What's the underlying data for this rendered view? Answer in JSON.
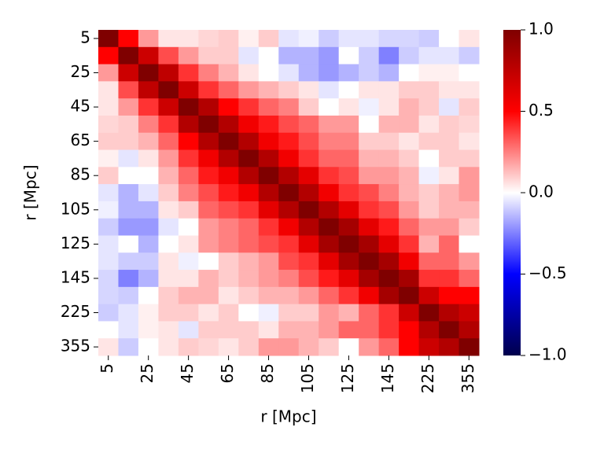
{
  "chart_data": {
    "type": "heatmap",
    "x_label": "r [Mpc]",
    "y_label": "r [Mpc]",
    "categories": [
      "5",
      null,
      "25",
      null,
      "45",
      null,
      "65",
      null,
      "85",
      null,
      "105",
      null,
      "125",
      null,
      "145",
      null,
      "225",
      null,
      "355"
    ],
    "colormap": [
      "#00004c",
      "#0000ff",
      "#ffffff",
      "#ff0000",
      "#7f0000"
    ],
    "clim": [
      -1,
      1
    ],
    "cticks": [
      {
        "value": -1,
        "label": "−1.0"
      },
      {
        "value": -0.5,
        "label": "−0.5"
      },
      {
        "value": 0,
        "label": "0.0"
      },
      {
        "value": 0.5,
        "label": "0.5"
      },
      {
        "value": 1,
        "label": "1.0"
      }
    ],
    "values": [
      [
        1,
        0.5,
        0.2,
        0.05,
        0.05,
        0.08,
        0.1,
        0.03,
        0.1,
        -0.05,
        -0.03,
        -0.1,
        -0.05,
        -0.05,
        -0.08,
        -0.08,
        -0.1,
        0.0,
        0.05
      ],
      [
        0.5,
        1,
        0.7,
        0.35,
        0.2,
        0.1,
        0.1,
        -0.05,
        0.0,
        -0.15,
        -0.15,
        -0.2,
        0.0,
        -0.1,
        -0.25,
        -0.1,
        -0.05,
        -0.05,
        -0.1
      ],
      [
        0.2,
        0.7,
        1,
        0.75,
        0.4,
        0.25,
        0.15,
        0.05,
        0.0,
        -0.05,
        -0.15,
        -0.2,
        -0.15,
        -0.1,
        -0.15,
        0.0,
        0.03,
        0.03,
        0.0
      ],
      [
        0.05,
        0.35,
        0.75,
        1,
        0.7,
        0.4,
        0.3,
        0.2,
        0.15,
        0.1,
        0.05,
        -0.05,
        0.0,
        0.05,
        0.05,
        0.1,
        0.1,
        0.05,
        0.05
      ],
      [
        0.05,
        0.2,
        0.4,
        0.7,
        1,
        0.8,
        0.5,
        0.4,
        0.3,
        0.25,
        0.1,
        0.0,
        0.05,
        -0.03,
        0.05,
        0.15,
        0.1,
        -0.05,
        0.1
      ],
      [
        0.08,
        0.1,
        0.25,
        0.4,
        0.8,
        1,
        0.8,
        0.55,
        0.45,
        0.35,
        0.3,
        0.2,
        0.2,
        0.0,
        0.15,
        0.15,
        0.05,
        0.1,
        0.08
      ],
      [
        0.1,
        0.1,
        0.15,
        0.3,
        0.5,
        0.8,
        1,
        0.8,
        0.55,
        0.45,
        0.35,
        0.25,
        0.25,
        0.1,
        0.1,
        0.05,
        0.1,
        0.1,
        0.05
      ],
      [
        0.03,
        -0.05,
        0.05,
        0.2,
        0.4,
        0.55,
        0.8,
        1,
        0.8,
        0.55,
        0.4,
        0.3,
        0.3,
        0.15,
        0.15,
        0.1,
        0.0,
        0.1,
        0.1
      ],
      [
        0.1,
        0.0,
        0.0,
        0.15,
        0.3,
        0.45,
        0.55,
        0.8,
        1,
        0.8,
        0.6,
        0.4,
        0.35,
        0.2,
        0.2,
        0.15,
        -0.03,
        0.05,
        0.2
      ],
      [
        -0.05,
        -0.15,
        -0.05,
        0.1,
        0.25,
        0.35,
        0.45,
        0.55,
        0.8,
        1,
        0.8,
        0.55,
        0.4,
        0.35,
        0.25,
        0.15,
        0.1,
        0.15,
        0.2
      ],
      [
        -0.03,
        -0.15,
        -0.15,
        0.05,
        0.1,
        0.3,
        0.35,
        0.4,
        0.6,
        0.8,
        1,
        0.8,
        0.6,
        0.4,
        0.35,
        0.2,
        0.1,
        0.15,
        0.15
      ],
      [
        -0.1,
        -0.2,
        -0.2,
        -0.05,
        0.0,
        0.2,
        0.25,
        0.3,
        0.4,
        0.55,
        0.8,
        1,
        0.85,
        0.6,
        0.45,
        0.3,
        0.2,
        0.2,
        0.1
      ],
      [
        -0.05,
        0.0,
        -0.15,
        0.0,
        0.05,
        0.2,
        0.25,
        0.3,
        0.35,
        0.4,
        0.6,
        0.85,
        1,
        0.85,
        0.6,
        0.4,
        0.15,
        0.3,
        0.0
      ],
      [
        -0.05,
        -0.1,
        -0.1,
        0.05,
        -0.03,
        0.0,
        0.1,
        0.15,
        0.2,
        0.35,
        0.4,
        0.6,
        0.85,
        1,
        0.85,
        0.55,
        0.3,
        0.3,
        0.2
      ],
      [
        -0.08,
        -0.25,
        -0.15,
        0.05,
        0.05,
        0.15,
        0.1,
        0.15,
        0.2,
        0.25,
        0.35,
        0.45,
        0.6,
        0.85,
        1,
        0.85,
        0.4,
        0.4,
        0.3
      ],
      [
        -0.08,
        -0.1,
        0.0,
        0.1,
        0.15,
        0.15,
        0.05,
        0.1,
        0.15,
        0.15,
        0.2,
        0.3,
        0.4,
        0.55,
        0.85,
        1,
        0.7,
        0.5,
        0.5
      ],
      [
        -0.1,
        -0.05,
        0.03,
        0.1,
        0.1,
        0.05,
        0.1,
        0.0,
        -0.03,
        0.1,
        0.1,
        0.2,
        0.15,
        0.3,
        0.4,
        0.7,
        1,
        0.8,
        0.7
      ],
      [
        0.0,
        -0.05,
        0.03,
        0.05,
        -0.05,
        0.1,
        0.1,
        0.1,
        0.05,
        0.15,
        0.15,
        0.2,
        0.3,
        0.3,
        0.4,
        0.5,
        0.8,
        1,
        0.8
      ],
      [
        0.05,
        -0.1,
        0.0,
        0.05,
        0.1,
        0.08,
        0.05,
        0.1,
        0.2,
        0.2,
        0.15,
        0.1,
        0.0,
        0.2,
        0.3,
        0.5,
        0.7,
        0.8,
        1
      ]
    ]
  }
}
